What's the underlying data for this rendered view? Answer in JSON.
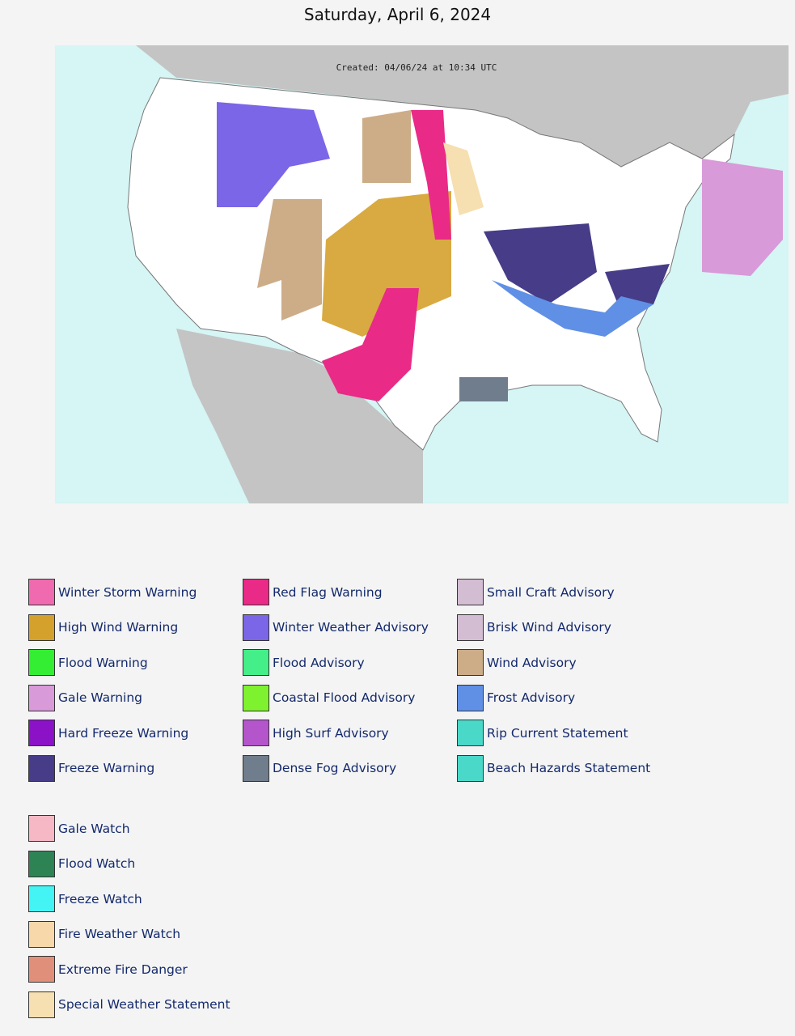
{
  "header": {
    "title": "Saturday, April 6, 2024"
  },
  "map": {
    "created": "Created: 04/06/24 at 10:34 UTC"
  },
  "legend": {
    "warnings": [
      {
        "label": "Winter Storm Warning",
        "color": "#f06aaf"
      },
      {
        "label": "High Wind Warning",
        "color": "#d4a12c"
      },
      {
        "label": "Flood Warning",
        "color": "#33ee33"
      },
      {
        "label": "Gale Warning",
        "color": "#d89ad8"
      },
      {
        "label": "Hard Freeze Warning",
        "color": "#8c12c8"
      },
      {
        "label": "Freeze Warning",
        "color": "#463c88"
      },
      {
        "label": "Red Flag Warning",
        "color": "#ea2a87"
      },
      {
        "label": "Winter Weather Advisory",
        "color": "#7a66e6"
      },
      {
        "label": "Flood Advisory",
        "color": "#44ee88"
      },
      {
        "label": "Coastal Flood Advisory",
        "color": "#7ef22e"
      },
      {
        "label": "High Surf Advisory",
        "color": "#b455cc"
      },
      {
        "label": "Dense Fog Advisory",
        "color": "#6f7d8c"
      },
      {
        "label": "Small Craft Advisory",
        "color": "#d3bdd3"
      },
      {
        "label": "Brisk Wind Advisory",
        "color": "#d3bdd3"
      },
      {
        "label": "Wind Advisory",
        "color": "#ccad88"
      },
      {
        "label": "Frost Advisory",
        "color": "#6090e6"
      },
      {
        "label": "Rip Current Statement",
        "color": "#4ad8c8"
      },
      {
        "label": "Beach Hazards Statement",
        "color": "#4ad8c8"
      }
    ],
    "watches": [
      {
        "label": "Gale Watch",
        "color": "#f5b8c4"
      },
      {
        "label": "Flood Watch",
        "color": "#2e8355"
      },
      {
        "label": "Freeze Watch",
        "color": "#44f4f4"
      },
      {
        "label": "Fire Weather Watch",
        "color": "#f6d8aa"
      },
      {
        "label": "Extreme Fire Danger",
        "color": "#e0907a"
      },
      {
        "label": "Special Weather Statement",
        "color": "#f6dfb0"
      }
    ]
  }
}
